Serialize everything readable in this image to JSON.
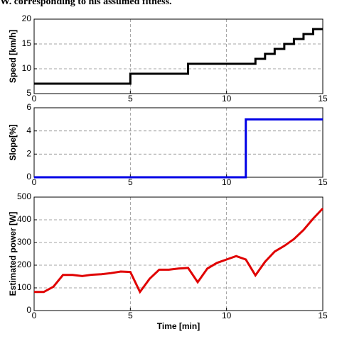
{
  "header": "W. corresponding to his assumed fitness.",
  "chart_data": [
    {
      "type": "line",
      "step": true,
      "ylabel": "Speed [km/h]",
      "x": [
        0,
        5,
        8,
        11.5,
        12,
        12.5,
        13,
        13.5,
        14,
        14.5,
        15
      ],
      "series": [
        {
          "name": "Speed",
          "color": "#000000",
          "values": [
            7,
            9,
            11,
            12,
            13,
            14,
            15,
            16,
            17,
            18,
            18
          ]
        }
      ],
      "xlim": [
        0,
        15
      ],
      "xticks": [
        0,
        5,
        10,
        15
      ],
      "ylim": [
        5,
        20
      ],
      "yticks": [
        5,
        10,
        15,
        20
      ],
      "grid": true
    },
    {
      "type": "line",
      "step": true,
      "ylabel": "Slope[%]",
      "x": [
        0,
        11,
        15
      ],
      "series": [
        {
          "name": "Slope",
          "color": "#0000e6",
          "values": [
            0,
            5,
            5
          ]
        }
      ],
      "xlim": [
        0,
        15
      ],
      "xticks": [
        0,
        5,
        10,
        15
      ],
      "ylim": [
        0,
        6
      ],
      "yticks": [
        0,
        2,
        4,
        6
      ],
      "grid": true
    },
    {
      "type": "line",
      "step": false,
      "ylabel": "Estimated power [W]",
      "xlabel": "Time [min]",
      "x": [
        0,
        0.5,
        1,
        1.5,
        2,
        2.5,
        3,
        3.5,
        4,
        4.5,
        5,
        5.5,
        6,
        6.5,
        7,
        7.5,
        8,
        8.5,
        9,
        9.5,
        10,
        10.5,
        11,
        11.5,
        12,
        12.5,
        13,
        13.5,
        14,
        14.5,
        15
      ],
      "series": [
        {
          "name": "Estimated power",
          "color": "#e00000",
          "values": [
            82,
            82,
            105,
            157,
            157,
            152,
            158,
            160,
            165,
            172,
            170,
            82,
            140,
            180,
            180,
            185,
            188,
            125,
            185,
            210,
            225,
            240,
            225,
            155,
            215,
            260,
            285,
            315,
            355,
            405,
            450
          ]
        }
      ],
      "xlim": [
        0,
        15
      ],
      "xticks": [
        0,
        5,
        10,
        15
      ],
      "ylim": [
        0,
        500
      ],
      "yticks": [
        0,
        100,
        200,
        300,
        400,
        500
      ],
      "grid": true
    }
  ]
}
